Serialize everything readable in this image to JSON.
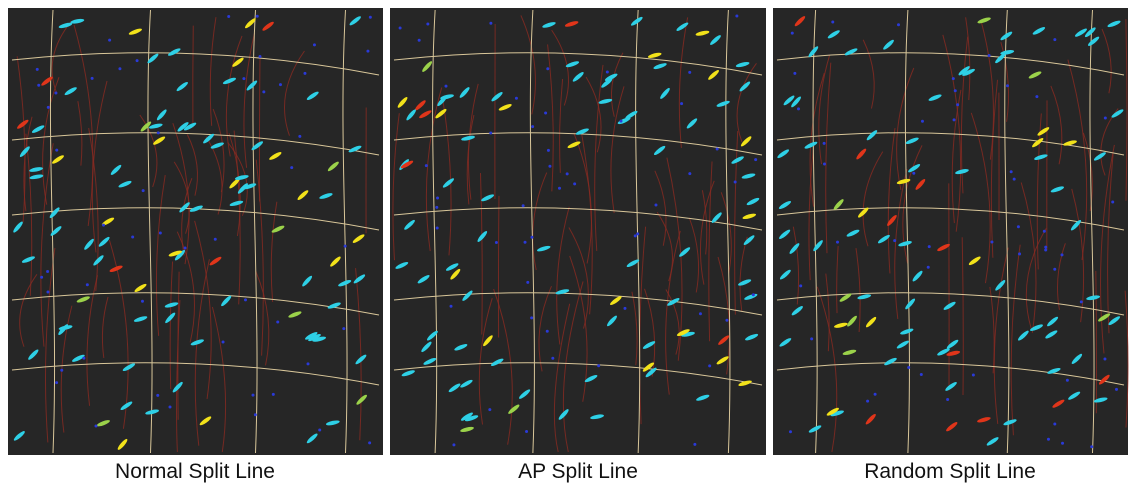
{
  "panels": [
    {
      "caption": "Normal Split Line"
    },
    {
      "caption": "AP Split Line"
    },
    {
      "caption": "Random Split Line"
    }
  ]
}
